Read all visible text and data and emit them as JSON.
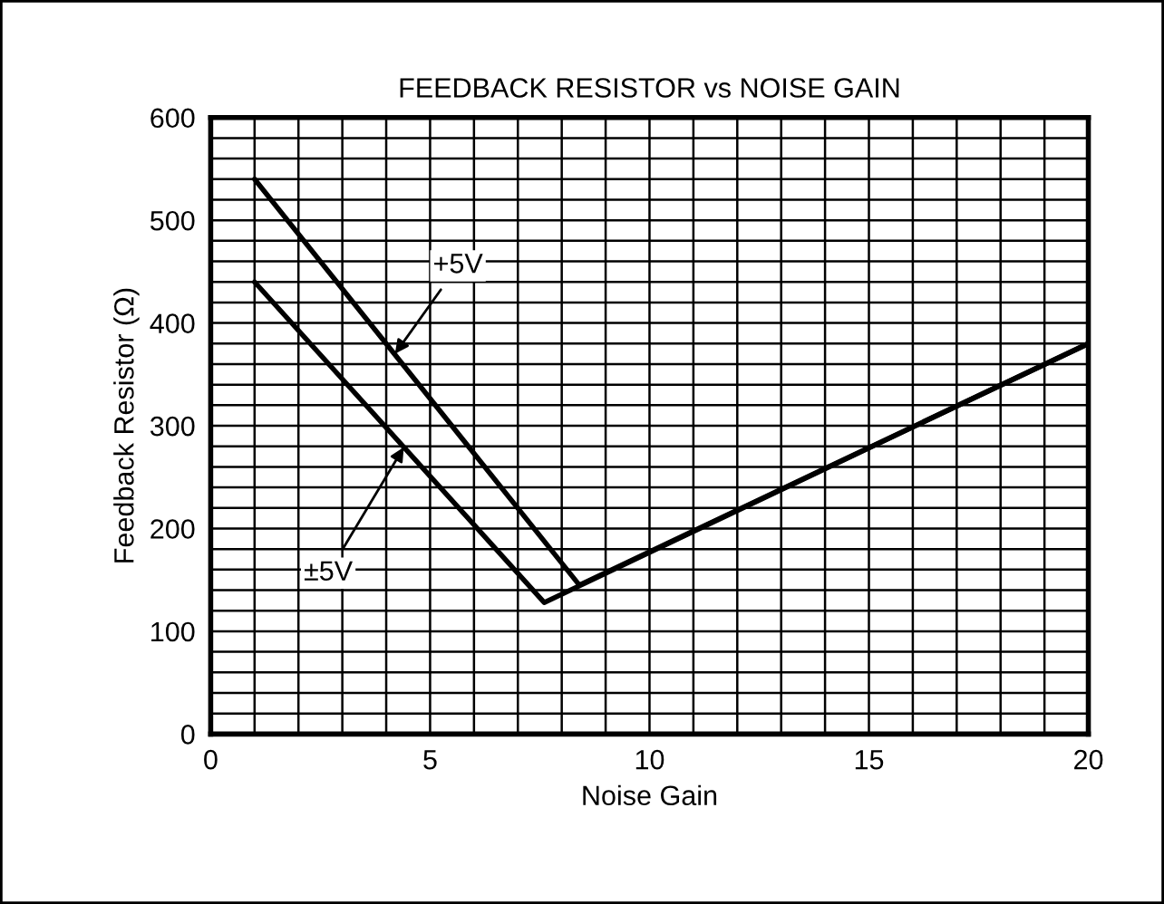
{
  "chart_data": {
    "type": "line",
    "title": "FEEDBACK RESISTOR vs NOISE GAIN",
    "xlabel": "Noise Gain",
    "ylabel": "Feedback Resistor (Ω)",
    "series": [
      {
        "color": "#000000",
        "x": [
          1,
          8.4,
          20
        ],
        "values": [
          540,
          145,
          380
        ]
      },
      {
        "color": "#000000",
        "x": [
          1,
          7.6,
          20
        ],
        "values": [
          440,
          128,
          380
        ]
      }
    ],
    "annotations": [
      {
        "text": "+5V",
        "x": 4.2,
        "y": 370
      },
      {
        "text": "±5V",
        "x": 4.4,
        "y": 279
      }
    ],
    "xlim": [
      0,
      20
    ],
    "ylim": [
      0,
      600
    ],
    "xticks": [
      0,
      {
        "value": 1,
        "label": null
      },
      {
        "value": 2,
        "label": null
      },
      {
        "value": 3,
        "label": null
      },
      {
        "value": 4,
        "label": null
      },
      5,
      {
        "value": 6,
        "label": null
      },
      {
        "value": 7,
        "label": null
      },
      {
        "value": 8,
        "label": null
      },
      {
        "value": 9,
        "label": null
      },
      10,
      {
        "value": 11,
        "label": null
      },
      {
        "value": 12,
        "label": null
      },
      {
        "value": 13,
        "label": null
      },
      {
        "value": 14,
        "label": null
      },
      15,
      {
        "value": 16,
        "label": null
      },
      {
        "value": 17,
        "label": null
      },
      {
        "value": 18,
        "label": null
      },
      {
        "value": 19,
        "label": null
      },
      20
    ],
    "yticks": [
      0,
      {
        "value": 20,
        "label": null
      },
      {
        "value": 40,
        "label": null
      },
      {
        "value": 60,
        "label": null
      },
      {
        "value": 80,
        "label": null
      },
      100,
      {
        "value": 120,
        "label": null
      },
      {
        "value": 140,
        "label": null
      },
      {
        "value": 160,
        "label": null
      },
      {
        "value": 180,
        "label": null
      },
      200,
      {
        "value": 220,
        "label": null
      },
      {
        "value": 240,
        "label": null
      },
      {
        "value": 260,
        "label": null
      },
      {
        "value": 280,
        "label": null
      },
      300,
      {
        "value": 320,
        "label": null
      },
      {
        "value": 340,
        "label": null
      },
      {
        "value": 360,
        "label": null
      },
      {
        "value": 380,
        "label": null
      },
      400,
      {
        "value": 420,
        "label": null
      },
      {
        "value": 440,
        "label": null
      },
      {
        "value": 460,
        "label": null
      },
      {
        "value": 480,
        "label": null
      },
      500,
      {
        "value": 520,
        "label": null
      },
      {
        "value": 540,
        "label": null
      },
      {
        "value": 560,
        "label": null
      },
      {
        "value": 580,
        "label": null
      },
      600
    ],
    "grid": true
  }
}
